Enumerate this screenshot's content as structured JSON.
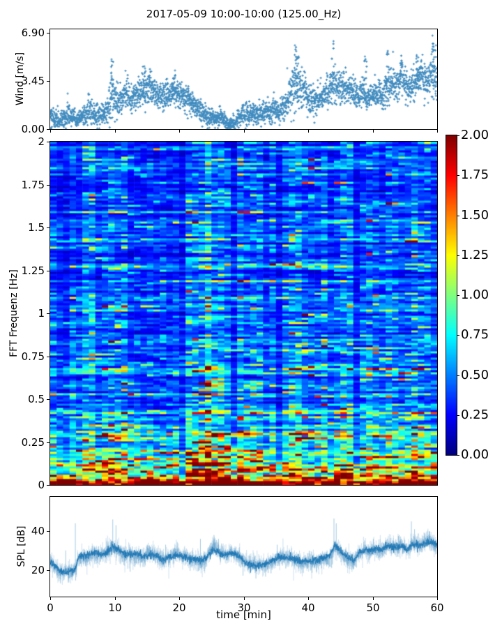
{
  "figure": {
    "title": "2017-05-09 10:00-10:00 (125.00_Hz)",
    "background": "#ffffff",
    "accent_color": "#1f77b4"
  },
  "axes": {
    "wind": {
      "ylabel": "Wind [m/s]",
      "ylim": [
        0,
        7.15
      ],
      "yticks": [
        {
          "v": 0,
          "label": "0.00"
        },
        {
          "v": 3.45,
          "label": "3.45"
        },
        {
          "v": 6.9,
          "label": "6.90"
        }
      ],
      "xlim": [
        0,
        60
      ],
      "xticks": [
        0,
        10,
        20,
        30,
        40,
        50,
        60
      ]
    },
    "spectrogram": {
      "ylabel": "FFT Frequenz [Hz]",
      "ylim": [
        0,
        2
      ],
      "yticks": [
        {
          "v": 0,
          "label": "0"
        },
        {
          "v": 0.25,
          "label": "0.25"
        },
        {
          "v": 0.5,
          "label": "0.5"
        },
        {
          "v": 0.75,
          "label": "0.75"
        },
        {
          "v": 1,
          "label": "1"
        },
        {
          "v": 1.25,
          "label": "1.25"
        },
        {
          "v": 1.5,
          "label": "1.5"
        },
        {
          "v": 1.75,
          "label": "1.75"
        },
        {
          "v": 2,
          "label": "2"
        }
      ],
      "xlim": [
        0,
        60
      ]
    },
    "colorbar": {
      "colormap": "jet",
      "clim": [
        0,
        2
      ],
      "ticks": [
        {
          "v": 0,
          "label": "0.00"
        },
        {
          "v": 0.25,
          "label": "0.25"
        },
        {
          "v": 0.5,
          "label": "0.50"
        },
        {
          "v": 0.75,
          "label": "0.75"
        },
        {
          "v": 1,
          "label": "1.00"
        },
        {
          "v": 1.25,
          "label": "1.25"
        },
        {
          "v": 1.5,
          "label": "1.50"
        },
        {
          "v": 1.75,
          "label": "1.75"
        },
        {
          "v": 2,
          "label": "2.00"
        }
      ]
    },
    "spl": {
      "ylabel": "SPL [dB]",
      "ylim": [
        6.2,
        57.7
      ],
      "yticks": [
        {
          "v": 20,
          "label": "20"
        },
        {
          "v": 40,
          "label": "40"
        }
      ],
      "xlabel": "time [min]",
      "xticks": [
        {
          "v": 0,
          "label": "0"
        },
        {
          "v": 10,
          "label": "10"
        },
        {
          "v": 20,
          "label": "20"
        },
        {
          "v": 30,
          "label": "30"
        },
        {
          "v": 40,
          "label": "40"
        },
        {
          "v": 50,
          "label": "50"
        },
        {
          "v": 60,
          "label": "60"
        }
      ],
      "xlim": [
        0,
        60
      ]
    }
  },
  "chart_data": [
    {
      "id": "wind_speed",
      "type": "scatter",
      "marker": "+",
      "color": "#1f77b4",
      "x_range": [
        0,
        60
      ],
      "y_range": [
        0,
        7.15
      ],
      "n_points": 3200,
      "envelope_mean_spread": [
        [
          0,
          0.9,
          0.4
        ],
        [
          1,
          0.7,
          0.3
        ],
        [
          2,
          0.6,
          0.3
        ],
        [
          3,
          1.1,
          0.4
        ],
        [
          4,
          0.7,
          0.3
        ],
        [
          5,
          0.9,
          0.35
        ],
        [
          6,
          1.4,
          0.5
        ],
        [
          7,
          0.9,
          0.4
        ],
        [
          8,
          1.1,
          0.45
        ],
        [
          9,
          1.5,
          0.55
        ],
        [
          9.6,
          2.2,
          1.0
        ],
        [
          10.5,
          1.9,
          0.6
        ],
        [
          11.5,
          2.5,
          0.5
        ],
        [
          12.5,
          2.2,
          0.5
        ],
        [
          13.5,
          2.5,
          0.5
        ],
        [
          14.5,
          2.8,
          0.6
        ],
        [
          15.5,
          2.9,
          0.55
        ],
        [
          16.5,
          2.6,
          0.5
        ],
        [
          17.5,
          2.3,
          0.5
        ],
        [
          18.5,
          2.4,
          0.5
        ],
        [
          19.5,
          2.6,
          0.5
        ],
        [
          20.5,
          2.4,
          0.45
        ],
        [
          21.5,
          2.1,
          0.45
        ],
        [
          22.5,
          1.6,
          0.4
        ],
        [
          23.5,
          1.2,
          0.35
        ],
        [
          24.5,
          0.9,
          0.3
        ],
        [
          25.5,
          0.75,
          0.3
        ],
        [
          26.5,
          0.8,
          0.3
        ],
        [
          27.5,
          0.5,
          0.2
        ],
        [
          28.5,
          0.45,
          0.2
        ],
        [
          29.5,
          0.9,
          0.35
        ],
        [
          30.5,
          1.2,
          0.4
        ],
        [
          31.5,
          1.05,
          0.35
        ],
        [
          32.5,
          1.0,
          0.35
        ],
        [
          33.5,
          1.2,
          0.35
        ],
        [
          34.5,
          1.4,
          0.45
        ],
        [
          35.5,
          1.3,
          0.4
        ],
        [
          36.5,
          1.8,
          0.5
        ],
        [
          37.5,
          2.8,
          0.9
        ],
        [
          38.5,
          3.2,
          0.8
        ],
        [
          39.5,
          2.6,
          0.6
        ],
        [
          40.5,
          2.1,
          0.5
        ],
        [
          41.5,
          1.9,
          0.45
        ],
        [
          42.5,
          2.5,
          0.5
        ],
        [
          43.5,
          3.0,
          0.9
        ],
        [
          44.5,
          3.1,
          0.7
        ],
        [
          45.5,
          2.9,
          0.5
        ],
        [
          46.5,
          2.9,
          0.5
        ],
        [
          47.5,
          2.3,
          0.5
        ],
        [
          48.5,
          2.5,
          0.5
        ],
        [
          49.5,
          2.1,
          0.45
        ],
        [
          50.5,
          2.7,
          0.5
        ],
        [
          51.5,
          2.4,
          0.5
        ],
        [
          52.5,
          3.2,
          0.7
        ],
        [
          53.5,
          3.0,
          0.5
        ],
        [
          54.5,
          3.6,
          0.6
        ],
        [
          55.5,
          2.8,
          0.5
        ],
        [
          56.5,
          3.3,
          0.55
        ],
        [
          57.5,
          3.8,
          0.6
        ],
        [
          58.5,
          3.4,
          0.55
        ],
        [
          59.2,
          3.8,
          0.8
        ],
        [
          60,
          3.6,
          0.6
        ]
      ],
      "spikes": [
        [
          9.6,
          5.0
        ],
        [
          14.6,
          4.5
        ],
        [
          19.2,
          4.2
        ],
        [
          38.0,
          6.0
        ],
        [
          38.3,
          5.2
        ],
        [
          43.8,
          6.3
        ],
        [
          48.9,
          5.2
        ],
        [
          52.3,
          5.6
        ],
        [
          54.4,
          4.9
        ],
        [
          56.9,
          5.3
        ],
        [
          59.3,
          6.7
        ],
        [
          59.6,
          6.0
        ]
      ]
    },
    {
      "id": "fft_spectrogram",
      "type": "heatmap",
      "colormap": "jet",
      "clim": [
        0,
        2
      ],
      "x_range": [
        0,
        60
      ],
      "y_range": [
        0,
        2
      ],
      "time_bins": 60,
      "freq_bins": 164,
      "noise_sigma": 0.55,
      "freq_base_level": [
        [
          0,
          1.9
        ],
        [
          0.02,
          1.5
        ],
        [
          0.05,
          1.05
        ],
        [
          0.09,
          0.8
        ],
        [
          0.15,
          0.62
        ],
        [
          0.25,
          0.5
        ],
        [
          0.4,
          0.42
        ],
        [
          0.7,
          0.36
        ],
        [
          1.0,
          0.33
        ],
        [
          1.5,
          0.3
        ],
        [
          2.0,
          0.28
        ]
      ],
      "active_periods": [
        [
          5,
          12,
          0.8
        ],
        [
          21,
          28,
          1.0
        ],
        [
          29,
          32,
          0.35
        ],
        [
          36,
          40,
          0.5
        ],
        [
          40,
          43,
          0.45
        ],
        [
          44,
          47,
          0.6
        ],
        [
          48,
          51,
          0.7
        ],
        [
          52,
          56,
          0.5
        ],
        [
          56,
          60,
          0.65
        ]
      ],
      "low_freq_red_band_periods": [
        [
          0,
          4
        ],
        [
          13,
          18
        ],
        [
          22,
          31
        ],
        [
          42,
          45
        ],
        [
          54,
          60
        ]
      ]
    },
    {
      "id": "spl",
      "type": "line",
      "color": "#1f77b4",
      "x_range": [
        0,
        60
      ],
      "y_range": [
        6.2,
        57.7
      ],
      "envelope_mean": [
        [
          0,
          24
        ],
        [
          0.8,
          22
        ],
        [
          1.6,
          19.5
        ],
        [
          2.5,
          18.8
        ],
        [
          3.3,
          19.5
        ],
        [
          4.0,
          21
        ],
        [
          4.4,
          26.5
        ],
        [
          5,
          27.5
        ],
        [
          6,
          28
        ],
        [
          7,
          29
        ],
        [
          8,
          28
        ],
        [
          9,
          29.5
        ],
        [
          9.7,
          32.5
        ],
        [
          10.5,
          31
        ],
        [
          11.5,
          28.5
        ],
        [
          12.5,
          28
        ],
        [
          13.5,
          28.5
        ],
        [
          14.5,
          27
        ],
        [
          15.5,
          28
        ],
        [
          16.5,
          27
        ],
        [
          17.5,
          25.5
        ],
        [
          18.5,
          26.5
        ],
        [
          19.5,
          27.5
        ],
        [
          20.5,
          27
        ],
        [
          21.5,
          26
        ],
        [
          22.5,
          25.5
        ],
        [
          23.5,
          25
        ],
        [
          24.5,
          27
        ],
        [
          25.3,
          30.5
        ],
        [
          26,
          29
        ],
        [
          27,
          27.5
        ],
        [
          28,
          28.5
        ],
        [
          28.8,
          28
        ],
        [
          29.5,
          26
        ],
        [
          30.2,
          23.5
        ],
        [
          31,
          22.5
        ],
        [
          32,
          22
        ],
        [
          33,
          22.5
        ],
        [
          34,
          24
        ],
        [
          34.8,
          25.5
        ],
        [
          35.5,
          26.5
        ],
        [
          36.5,
          26.5
        ],
        [
          37.5,
          25.8
        ],
        [
          38.5,
          25
        ],
        [
          39.5,
          24.5
        ],
        [
          40.5,
          24.5
        ],
        [
          41.5,
          25
        ],
        [
          42.5,
          26.5
        ],
        [
          43.3,
          27.5
        ],
        [
          43.8,
          30
        ],
        [
          44.1,
          33
        ],
        [
          44.6,
          31
        ],
        [
          45.3,
          29
        ],
        [
          46,
          27.5
        ],
        [
          46.7,
          25.5
        ],
        [
          47.2,
          25
        ],
        [
          47.8,
          28.5
        ],
        [
          48.5,
          30
        ],
        [
          49.5,
          30.5
        ],
        [
          50.5,
          31
        ],
        [
          51.5,
          30
        ],
        [
          52.3,
          32.5
        ],
        [
          53,
          31.5
        ],
        [
          53.8,
          32
        ],
        [
          54.5,
          32.5
        ],
        [
          55.3,
          30.5
        ],
        [
          56.2,
          33
        ],
        [
          57,
          32.5
        ],
        [
          58,
          33.5
        ],
        [
          59,
          34
        ],
        [
          60,
          33.5
        ]
      ],
      "up_spikes": [
        [
          2.4,
          30
        ],
        [
          3.9,
          44
        ],
        [
          9.7,
          46
        ],
        [
          10.2,
          43
        ],
        [
          17.9,
          33
        ],
        [
          23.3,
          36
        ],
        [
          25.4,
          38
        ],
        [
          26.1,
          36
        ],
        [
          35.2,
          33
        ],
        [
          44.0,
          46.5
        ],
        [
          44.35,
          44
        ],
        [
          50.1,
          36
        ],
        [
          54.1,
          38
        ],
        [
          56.0,
          45
        ],
        [
          56.5,
          41
        ],
        [
          58.8,
          40
        ],
        [
          59.5,
          38
        ]
      ],
      "down_spikes": [
        [
          1.6,
          13
        ],
        [
          2.9,
          13.5
        ],
        [
          12.4,
          19
        ],
        [
          21.7,
          19.5
        ],
        [
          29.9,
          17
        ],
        [
          31.9,
          15.5
        ],
        [
          33.4,
          16.5
        ],
        [
          40.6,
          18.5
        ],
        [
          47.0,
          20.5
        ]
      ]
    }
  ]
}
